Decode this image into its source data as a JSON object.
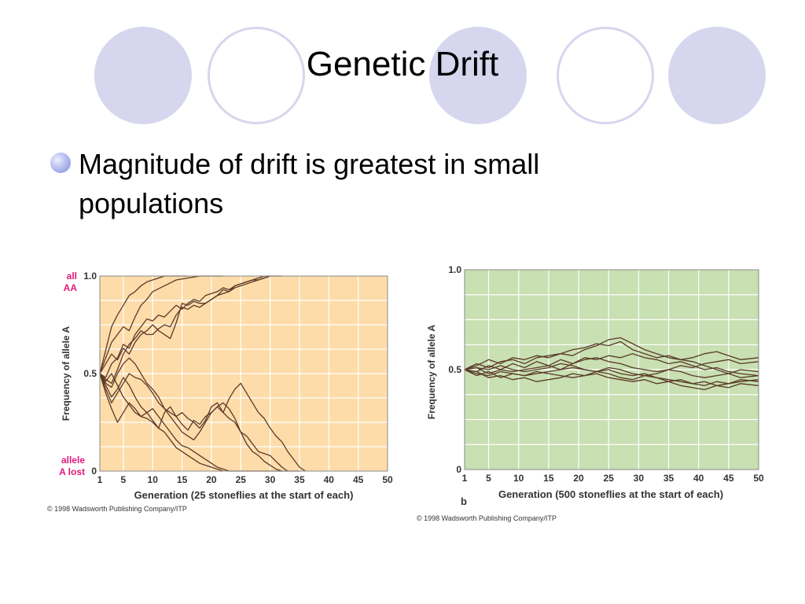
{
  "slide": {
    "title": "Genetic Drift",
    "bullet": "Magnitude of drift is greatest in small populations",
    "bullet_color": "#9aa6e6",
    "decor_color": "#d6d6ee"
  },
  "chart_data": [
    {
      "type": "line",
      "background": "#fddcaa",
      "ylabel": "Frequency of allele A",
      "xlabel": "Generation (25 stoneflies at the start of each)",
      "x_ticks": [
        "1",
        "5",
        "10",
        "15",
        "20",
        "25",
        "30",
        "35",
        "40",
        "45",
        "50"
      ],
      "y_ticks": [
        "0",
        "0.5",
        "1.0"
      ],
      "xlim": [
        1,
        50
      ],
      "ylim": [
        0,
        1
      ],
      "top_annotation": [
        "all",
        "AA"
      ],
      "bottom_annotation": [
        "allele",
        "A lost"
      ],
      "annotation_color": "#e0197b",
      "line_color": "#5a3a28",
      "copyright": "© 1998 Wadsworth Publishing Company/ITP",
      "series": [
        {
          "x": [
            1,
            2,
            3,
            4,
            5,
            6,
            7,
            8,
            9,
            10,
            11,
            12,
            14,
            16
          ],
          "values": [
            0.5,
            0.62,
            0.74,
            0.8,
            0.85,
            0.9,
            0.92,
            0.95,
            0.97,
            0.98,
            0.99,
            1.0,
            1.0,
            1.0
          ]
        },
        {
          "x": [
            1,
            2,
            3,
            4,
            5,
            6,
            7,
            8,
            9,
            10,
            12,
            14,
            16,
            18,
            20,
            22
          ],
          "values": [
            0.5,
            0.58,
            0.66,
            0.7,
            0.74,
            0.72,
            0.79,
            0.85,
            0.88,
            0.92,
            0.95,
            0.98,
            0.99,
            1.0,
            1.0,
            1.0
          ]
        },
        {
          "x": [
            1,
            2,
            3,
            4,
            5,
            6,
            7,
            8,
            9,
            10,
            11,
            12,
            13,
            14,
            15,
            16,
            17,
            18,
            19,
            20,
            21,
            22,
            23,
            24,
            25,
            26,
            27,
            28,
            29,
            30,
            31,
            32
          ],
          "values": [
            0.5,
            0.48,
            0.55,
            0.58,
            0.65,
            0.63,
            0.7,
            0.74,
            0.78,
            0.77,
            0.8,
            0.79,
            0.82,
            0.85,
            0.83,
            0.86,
            0.88,
            0.87,
            0.9,
            0.91,
            0.92,
            0.94,
            0.93,
            0.95,
            0.96,
            0.97,
            0.98,
            0.98,
            0.99,
            1.0,
            1.0,
            1.0
          ]
        },
        {
          "x": [
            1,
            2,
            3,
            4,
            5,
            6,
            7,
            8,
            9,
            10,
            11,
            12,
            13,
            14,
            15,
            16,
            17,
            18,
            19,
            20,
            21,
            22,
            23,
            24,
            25,
            26,
            27,
            28,
            29,
            30
          ],
          "values": [
            0.5,
            0.55,
            0.6,
            0.57,
            0.63,
            0.6,
            0.66,
            0.7,
            0.72,
            0.75,
            0.72,
            0.7,
            0.68,
            0.76,
            0.86,
            0.85,
            0.87,
            0.86,
            0.86,
            0.88,
            0.9,
            0.93,
            0.92,
            0.95,
            0.96,
            0.97,
            0.98,
            0.99,
            1.0,
            1.0
          ]
        },
        {
          "x": [
            1,
            2,
            3,
            4,
            5,
            6,
            7,
            8,
            9,
            10,
            11,
            12,
            13,
            14,
            15,
            16,
            17,
            18,
            19,
            20,
            21,
            22,
            23,
            24,
            25,
            26,
            27,
            28,
            29,
            30
          ],
          "values": [
            0.5,
            0.47,
            0.45,
            0.52,
            0.6,
            0.65,
            0.68,
            0.72,
            0.7,
            0.7,
            0.73,
            0.75,
            0.74,
            0.8,
            0.84,
            0.83,
            0.85,
            0.84,
            0.86,
            0.88,
            0.9,
            0.91,
            0.92,
            0.94,
            0.95,
            0.96,
            0.97,
            0.98,
            0.99,
            1.0
          ]
        },
        {
          "x": [
            1,
            2,
            3,
            4,
            5,
            6,
            7,
            8,
            9,
            10,
            11,
            12,
            13,
            14,
            15,
            16,
            17,
            18,
            19,
            20,
            21,
            22,
            23,
            24,
            25,
            26,
            27,
            28,
            29,
            30,
            31,
            32,
            33
          ],
          "values": [
            0.5,
            0.45,
            0.43,
            0.5,
            0.55,
            0.58,
            0.55,
            0.5,
            0.45,
            0.42,
            0.38,
            0.32,
            0.3,
            0.28,
            0.3,
            0.27,
            0.25,
            0.22,
            0.26,
            0.33,
            0.35,
            0.3,
            0.27,
            0.25,
            0.2,
            0.18,
            0.14,
            0.1,
            0.09,
            0.08,
            0.05,
            0.02,
            0.0
          ]
        },
        {
          "x": [
            1,
            2,
            3,
            4,
            5,
            6,
            7,
            8,
            9,
            10,
            11,
            12,
            13,
            14,
            15,
            16,
            17,
            18,
            19,
            20,
            21,
            22,
            23,
            24,
            25,
            26,
            27,
            28,
            29,
            30,
            31,
            32,
            33,
            34,
            35,
            36
          ],
          "values": [
            0.5,
            0.42,
            0.35,
            0.4,
            0.45,
            0.5,
            0.48,
            0.47,
            0.44,
            0.4,
            0.35,
            0.32,
            0.28,
            0.24,
            0.2,
            0.18,
            0.16,
            0.2,
            0.25,
            0.3,
            0.33,
            0.3,
            0.37,
            0.42,
            0.45,
            0.4,
            0.35,
            0.3,
            0.27,
            0.22,
            0.18,
            0.15,
            0.1,
            0.06,
            0.02,
            0.0
          ]
        },
        {
          "x": [
            1,
            2,
            3,
            4,
            5,
            6,
            7,
            8,
            9,
            10,
            11,
            12,
            13,
            14,
            15,
            16,
            17,
            18,
            19,
            20,
            21,
            22,
            23,
            24,
            25,
            26,
            27,
            28,
            29,
            30,
            31,
            32
          ],
          "values": [
            0.5,
            0.4,
            0.32,
            0.25,
            0.3,
            0.35,
            0.32,
            0.28,
            0.3,
            0.26,
            0.22,
            0.3,
            0.33,
            0.28,
            0.24,
            0.21,
            0.26,
            0.24,
            0.28,
            0.3,
            0.33,
            0.35,
            0.32,
            0.27,
            0.2,
            0.14,
            0.1,
            0.08,
            0.05,
            0.03,
            0.01,
            0.0
          ]
        },
        {
          "x": [
            1,
            2,
            3,
            4,
            5,
            6,
            7,
            8,
            9,
            10,
            11,
            12,
            13,
            14,
            15,
            16,
            17,
            18,
            19,
            20,
            21,
            22,
            23,
            24,
            25,
            26,
            27,
            28,
            29,
            30,
            31,
            32,
            33,
            34,
            35
          ],
          "values": [
            0.5,
            0.44,
            0.38,
            0.42,
            0.48,
            0.44,
            0.38,
            0.33,
            0.3,
            0.32,
            0.28,
            0.24,
            0.2,
            0.16,
            0.13,
            0.12,
            0.1,
            0.08,
            0.06,
            0.04,
            0.02,
            0.01,
            0.0,
            0.0,
            0.0,
            0.0,
            0.0,
            0.0,
            0.0,
            0.0,
            0.0,
            0.0,
            0.0,
            0.0,
            0.0
          ]
        },
        {
          "x": [
            1,
            2,
            3,
            4,
            5,
            6,
            7,
            8,
            9,
            10,
            11,
            12,
            13,
            14,
            15,
            16,
            17,
            18,
            19,
            20,
            21,
            22
          ],
          "values": [
            0.5,
            0.46,
            0.5,
            0.44,
            0.38,
            0.34,
            0.3,
            0.28,
            0.27,
            0.25,
            0.22,
            0.2,
            0.16,
            0.12,
            0.1,
            0.08,
            0.06,
            0.04,
            0.03,
            0.02,
            0.01,
            0.0
          ]
        }
      ]
    },
    {
      "type": "line",
      "background": "#c8e0b2",
      "ylabel": "Frequency of allele A",
      "xlabel": "Generation (500 stoneflies at the start of each)",
      "x_ticks": [
        "1",
        "5",
        "10",
        "15",
        "20",
        "25",
        "30",
        "35",
        "40",
        "45",
        "50"
      ],
      "y_ticks": [
        "0",
        "0.5",
        "1.0"
      ],
      "xlim": [
        1,
        50
      ],
      "ylim": [
        0,
        1
      ],
      "panel_label": "b",
      "line_color": "#5a3a28",
      "copyright": "© 1998 Wadsworth Publishing Company/ITP",
      "series": [
        {
          "x": [
            1,
            3,
            5,
            7,
            9,
            11,
            13,
            15,
            17,
            19,
            21,
            23,
            25,
            27,
            29,
            31,
            33,
            35,
            37,
            39,
            41,
            43,
            45,
            47,
            50
          ],
          "values": [
            0.5,
            0.52,
            0.55,
            0.53,
            0.56,
            0.55,
            0.57,
            0.56,
            0.58,
            0.57,
            0.6,
            0.62,
            0.65,
            0.66,
            0.63,
            0.6,
            0.58,
            0.56,
            0.55,
            0.54,
            0.52,
            0.5,
            0.48,
            0.5,
            0.49
          ]
        },
        {
          "x": [
            1,
            3,
            5,
            7,
            9,
            11,
            13,
            15,
            17,
            19,
            21,
            23,
            25,
            27,
            29,
            31,
            33,
            35,
            37,
            39,
            41,
            43,
            45,
            47,
            50
          ],
          "values": [
            0.5,
            0.53,
            0.51,
            0.54,
            0.55,
            0.53,
            0.56,
            0.57,
            0.58,
            0.6,
            0.61,
            0.63,
            0.62,
            0.64,
            0.6,
            0.58,
            0.56,
            0.57,
            0.55,
            0.56,
            0.58,
            0.59,
            0.57,
            0.55,
            0.56
          ]
        },
        {
          "x": [
            1,
            3,
            5,
            7,
            9,
            11,
            13,
            15,
            17,
            19,
            21,
            23,
            25,
            27,
            29,
            31,
            33,
            35,
            37,
            39,
            41,
            43,
            45,
            47,
            50
          ],
          "values": [
            0.5,
            0.49,
            0.52,
            0.5,
            0.53,
            0.51,
            0.54,
            0.52,
            0.55,
            0.53,
            0.56,
            0.55,
            0.57,
            0.56,
            0.58,
            0.56,
            0.55,
            0.53,
            0.54,
            0.52,
            0.5,
            0.51,
            0.49,
            0.48,
            0.47
          ]
        },
        {
          "x": [
            1,
            3,
            5,
            7,
            9,
            11,
            13,
            15,
            17,
            19,
            21,
            23,
            25,
            27,
            29,
            31,
            33,
            35,
            37,
            39,
            41,
            43,
            45,
            47,
            50
          ],
          "values": [
            0.5,
            0.51,
            0.48,
            0.5,
            0.49,
            0.5,
            0.51,
            0.52,
            0.5,
            0.53,
            0.55,
            0.56,
            0.54,
            0.53,
            0.51,
            0.5,
            0.49,
            0.5,
            0.52,
            0.51,
            0.53,
            0.54,
            0.55,
            0.53,
            0.54
          ]
        },
        {
          "x": [
            1,
            3,
            5,
            7,
            9,
            11,
            13,
            15,
            17,
            19,
            21,
            23,
            25,
            27,
            29,
            31,
            33,
            35,
            37,
            39,
            41,
            43,
            45,
            47,
            50
          ],
          "values": [
            0.5,
            0.48,
            0.47,
            0.49,
            0.48,
            0.47,
            0.48,
            0.49,
            0.5,
            0.51,
            0.5,
            0.49,
            0.5,
            0.48,
            0.47,
            0.48,
            0.46,
            0.45,
            0.44,
            0.43,
            0.44,
            0.42,
            0.43,
            0.44,
            0.45
          ]
        },
        {
          "x": [
            1,
            3,
            5,
            7,
            9,
            11,
            13,
            15,
            17,
            19,
            21,
            23,
            25,
            27,
            29,
            31,
            33,
            35,
            37,
            39,
            41,
            43,
            45,
            47,
            50
          ],
          "values": [
            0.5,
            0.49,
            0.46,
            0.47,
            0.45,
            0.46,
            0.44,
            0.45,
            0.46,
            0.48,
            0.47,
            0.49,
            0.48,
            0.46,
            0.45,
            0.47,
            0.46,
            0.44,
            0.45,
            0.43,
            0.42,
            0.44,
            0.43,
            0.45,
            0.44
          ]
        },
        {
          "x": [
            1,
            3,
            5,
            7,
            9,
            11,
            13,
            15,
            17,
            19,
            21,
            23,
            25,
            27,
            29,
            31,
            33,
            35,
            37,
            39,
            41,
            43,
            45,
            47,
            50
          ],
          "values": [
            0.5,
            0.47,
            0.49,
            0.46,
            0.48,
            0.47,
            0.49,
            0.48,
            0.47,
            0.46,
            0.47,
            0.48,
            0.46,
            0.45,
            0.44,
            0.45,
            0.43,
            0.44,
            0.42,
            0.41,
            0.4,
            0.42,
            0.41,
            0.43,
            0.42
          ]
        },
        {
          "x": [
            1,
            3,
            5,
            7,
            9,
            11,
            13,
            15,
            17,
            19,
            21,
            23,
            25,
            27,
            29,
            31,
            33,
            35,
            37,
            39,
            41,
            43,
            45,
            47,
            50
          ],
          "values": [
            0.5,
            0.51,
            0.5,
            0.52,
            0.5,
            0.49,
            0.5,
            0.51,
            0.53,
            0.52,
            0.5,
            0.49,
            0.51,
            0.5,
            0.48,
            0.47,
            0.48,
            0.5,
            0.49,
            0.47,
            0.46,
            0.47,
            0.48,
            0.46,
            0.47
          ]
        }
      ]
    }
  ]
}
